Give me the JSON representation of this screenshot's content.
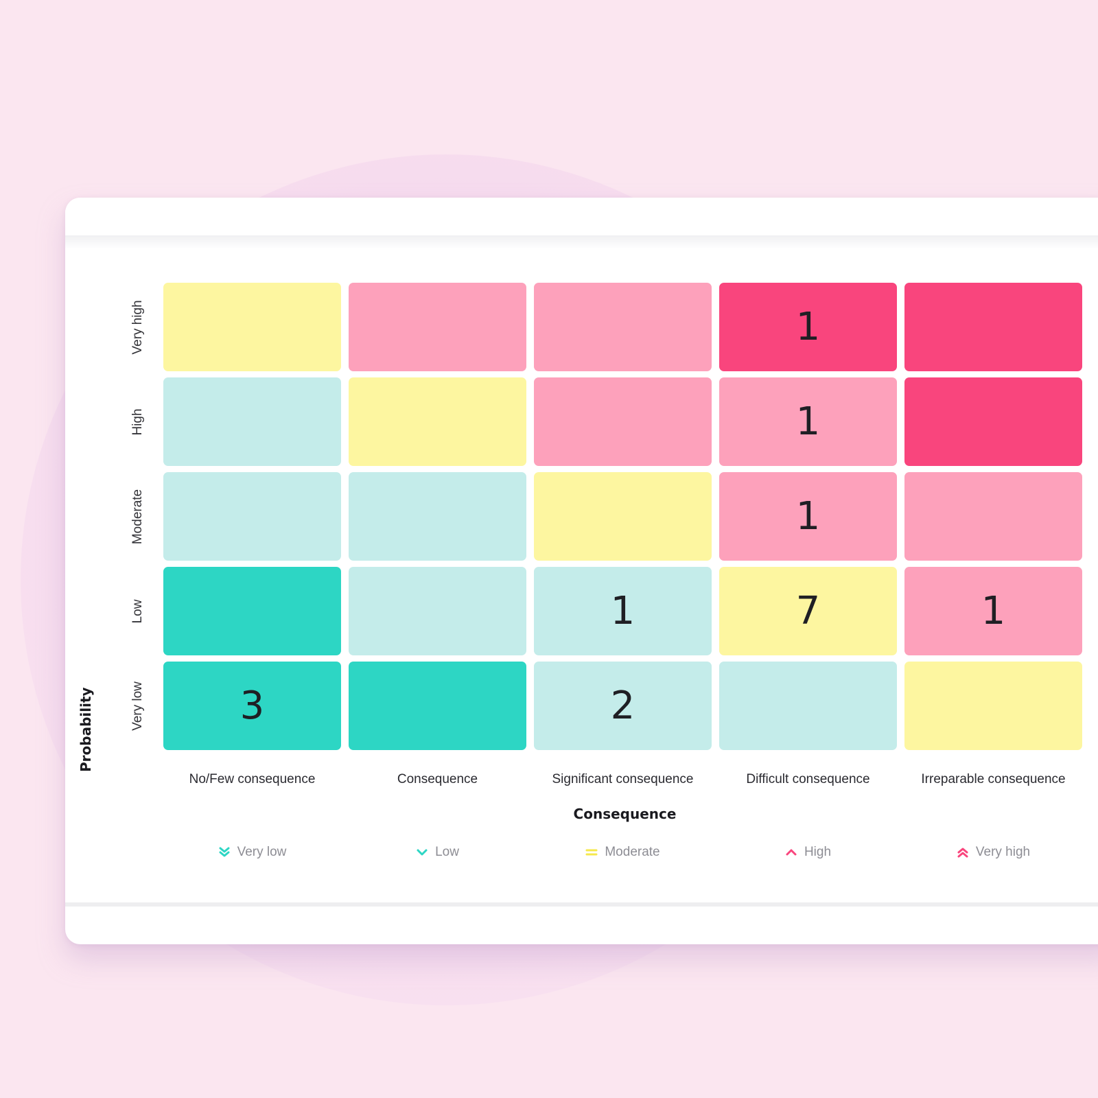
{
  "chart_data": {
    "type": "heatmap",
    "title": "",
    "xlabel": "Consequence",
    "ylabel": "Probability",
    "x_categories": [
      "No/Few consequence",
      "Consequence",
      "Significant consequence",
      "Difficult consequence",
      "Irreparable consequence"
    ],
    "y_categories_top_to_bottom": [
      "Very high",
      "High",
      "Moderate",
      "Low",
      "Very low"
    ],
    "levels": [
      "Very low",
      "Low",
      "Moderate",
      "High",
      "Very high"
    ],
    "level_colors": {
      "Very low": "#2dd6c4",
      "Low": "#c4ecea",
      "Moderate": "#fdf6a0",
      "High": "#fda1bb",
      "Very high": "#f9457d"
    },
    "risk_level_grid": [
      [
        "Moderate",
        "High",
        "High",
        "Very high",
        "Very high"
      ],
      [
        "Low",
        "Moderate",
        "High",
        "High",
        "Very high"
      ],
      [
        "Low",
        "Low",
        "Moderate",
        "High",
        "High"
      ],
      [
        "Very low",
        "Low",
        "Low",
        "Moderate",
        "High"
      ],
      [
        "Very low",
        "Very low",
        "Low",
        "Low",
        "Moderate"
      ]
    ],
    "counts": [
      [
        null,
        null,
        null,
        1,
        null
      ],
      [
        null,
        null,
        null,
        1,
        null
      ],
      [
        null,
        null,
        null,
        1,
        null
      ],
      [
        null,
        null,
        1,
        7,
        1
      ],
      [
        3,
        null,
        2,
        null,
        null
      ]
    ]
  },
  "legend": [
    {
      "label": "Very low",
      "icon": "double-chevron-down-icon",
      "color": "#2dd6c4"
    },
    {
      "label": "Low",
      "icon": "chevron-down-icon",
      "color": "#2dd6c4"
    },
    {
      "label": "Moderate",
      "icon": "equals-icon",
      "color": "#f5e84c"
    },
    {
      "label": "High",
      "icon": "chevron-up-icon",
      "color": "#f9457d"
    },
    {
      "label": "Very high",
      "icon": "double-chevron-up-icon",
      "color": "#f9457d"
    }
  ]
}
